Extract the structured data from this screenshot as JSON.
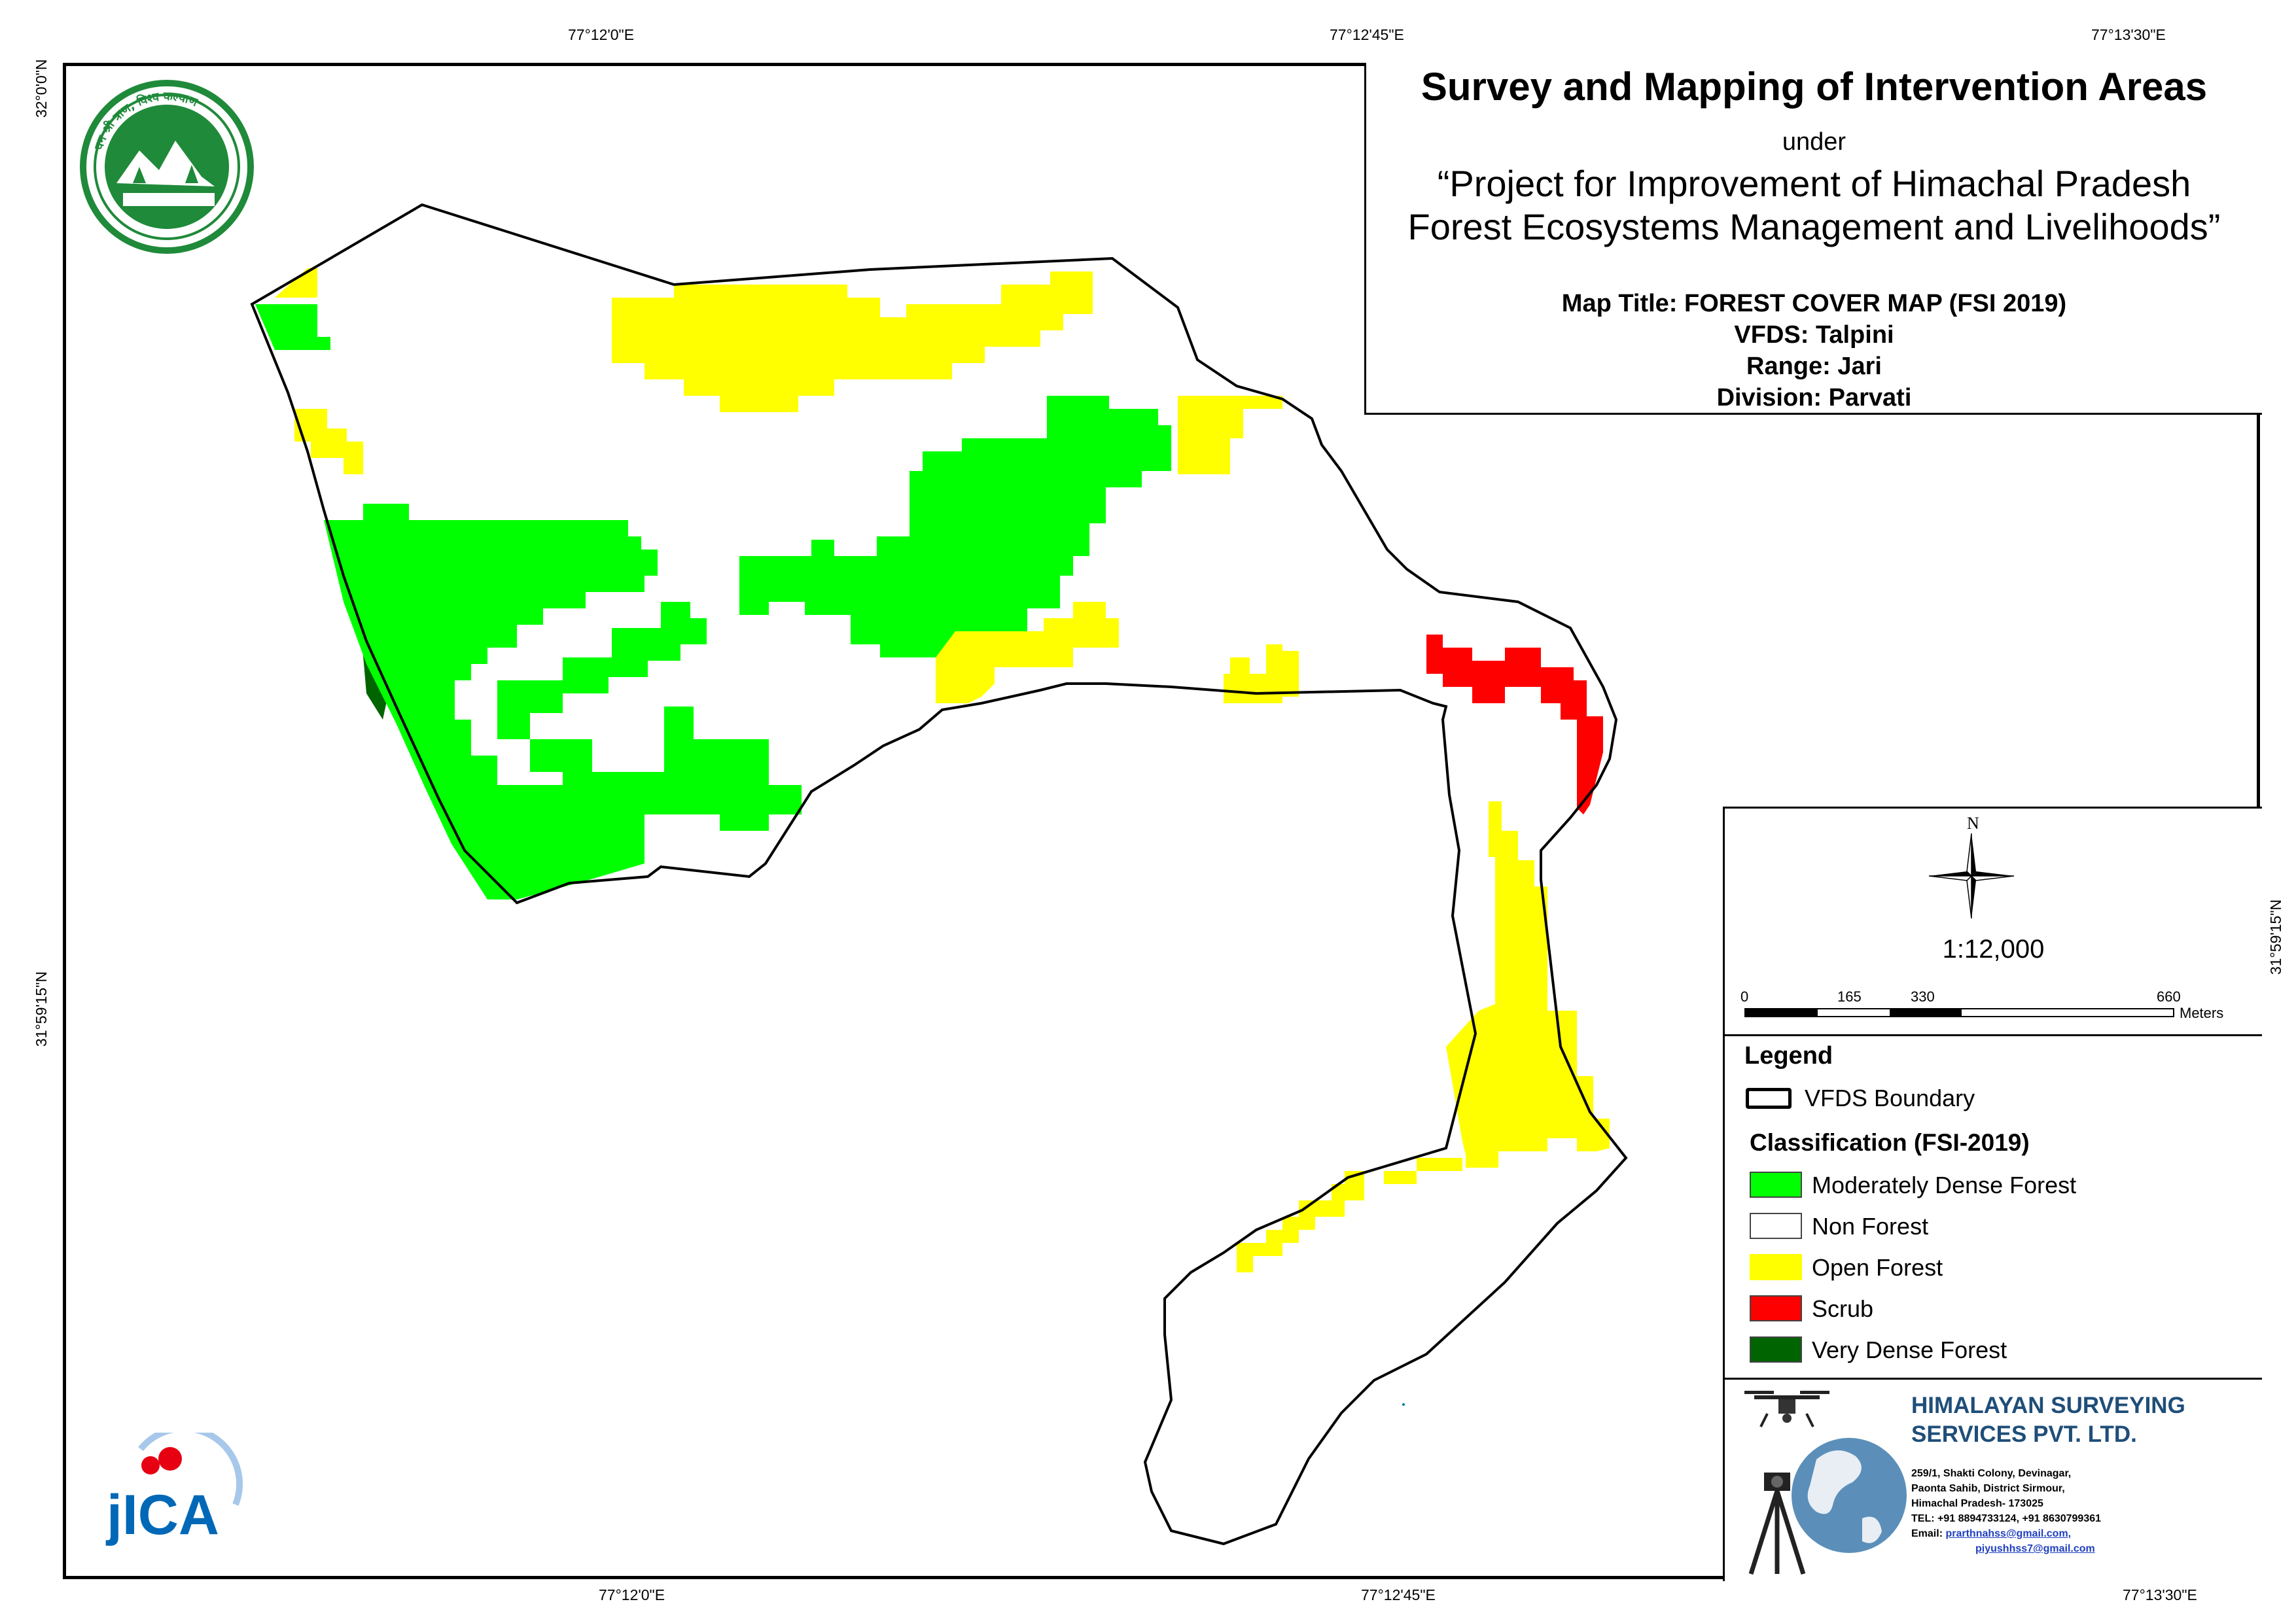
{
  "title": {
    "main": "Survey and Mapping of Intervention Areas",
    "under": "under",
    "project_line1": "“Project for Improvement of Himachal Pradesh",
    "project_line2": "Forest Ecosystems Management and Livelihoods”"
  },
  "map_info": {
    "map_title": "Map Title: FOREST COVER MAP (FSI 2019)",
    "vfds": "VFDS: Talpini",
    "range": "Range: Jari",
    "division": "Division: Parvati"
  },
  "coordinates": {
    "top": [
      "77°12'0\"E",
      "77°12'45\"E",
      "77°13'30\"E"
    ],
    "bottom": [
      "77°12'0\"E",
      "77°12'45\"E",
      "77°13'30\"E"
    ],
    "left": [
      "32°0'0\"N",
      "31°59'15\"N"
    ],
    "right": [
      "31°59'15\"N"
    ]
  },
  "north_arrow": {
    "label": "N",
    "icon": "compass-rose-icon"
  },
  "scale": {
    "ratio": "1:12,000",
    "ticks": [
      "0",
      "165",
      "330",
      "660"
    ],
    "unit": "Meters"
  },
  "legend": {
    "heading": "Legend",
    "boundary_label": "VFDS Boundary",
    "classification_heading": "Classification (FSI-2019)",
    "items": [
      {
        "label": "Moderately Dense Forest",
        "color": "#00ff00"
      },
      {
        "label": "Non Forest",
        "color": "#ffffff"
      },
      {
        "label": "Open Forest",
        "color": "#ffff00"
      },
      {
        "label": "Scrub",
        "color": "#ff0000"
      },
      {
        "label": "Very Dense Forest",
        "color": "#006400"
      }
    ]
  },
  "company": {
    "name_line1": "HIMALAYAN SURVEYING",
    "name_line2": "SERVICES PVT. LTD.",
    "address": [
      "259/1, Shakti Colony, Devinagar,",
      "Paonta Sahib, District Sirmour,",
      "Himachal Pradesh- 173025",
      "TEL: +91 8894733124, +91 8630799361"
    ],
    "email_label": "Email:",
    "emails": [
      "prarthnahss@gmail.com,",
      "piyushhss7@gmail.com"
    ]
  },
  "logos": {
    "hp_forest_seal_text": "वन श्री त्राण, विश्व कल्याण · वन विभाग हिमाचल प्रदेश",
    "jica_text": "JICA"
  },
  "colors": {
    "moderately_dense": "#00ff00",
    "open": "#ffff00",
    "scrub": "#ff0000",
    "very_dense": "#006400",
    "company_blue": "#1f4e79"
  }
}
